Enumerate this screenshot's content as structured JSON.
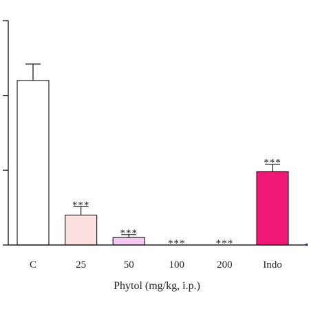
{
  "chart_data": {
    "type": "bar",
    "categories": [
      "C",
      "25",
      "50",
      "100",
      "200",
      "Indo"
    ],
    "values": [
      55,
      10,
      2.5,
      0,
      0,
      24.5
    ],
    "errors": [
      5.5,
      2.8,
      1.0,
      0,
      0,
      2.5
    ],
    "significance": [
      "",
      "***",
      "***",
      "***",
      "***",
      "***"
    ],
    "colors": [
      "#ffffff",
      "#fde0e0",
      "#f3c8ef",
      "#ffffff",
      "#ffffff",
      "#f0197a"
    ],
    "xlabel": "Phytol (mg/kg, i.p.)",
    "ylabel": "",
    "ylim": [
      0,
      75
    ],
    "ytick_count": 4
  }
}
